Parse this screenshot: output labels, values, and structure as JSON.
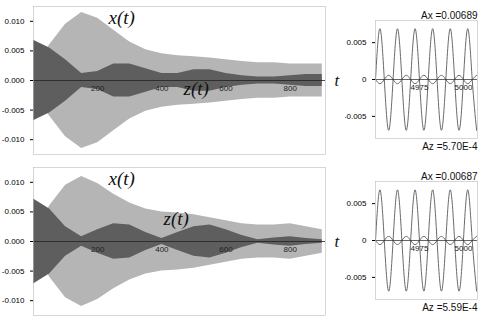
{
  "chart_data": [
    {
      "type": "area",
      "x_label": "t",
      "x": [
        0,
        50,
        100,
        150,
        200,
        250,
        300,
        350,
        400,
        450,
        500,
        550,
        600,
        650,
        700,
        750,
        800,
        850,
        900
      ],
      "xlim": [
        0,
        910
      ],
      "xticks": [
        200,
        400,
        600,
        800
      ],
      "ylim": [
        -0.0125,
        0.0125
      ],
      "yticks": [
        {
          "value": 0.01,
          "label": "0.010"
        },
        0.005,
        {
          "value": 0,
          "label": "0.000"
        },
        -0.005,
        {
          "value": -0.01,
          "label": "-0.010"
        }
      ],
      "series": [
        {
          "name": "x(t)",
          "color": "#b5b5b5",
          "upper": [
            0.002,
            0.006,
            0.0095,
            0.0115,
            0.0105,
            0.0085,
            0.0065,
            0.0052,
            0.0045,
            0.0042,
            0.004,
            0.0038,
            0.0035,
            0.0032,
            0.003,
            0.003,
            0.0028,
            0.0028,
            0.0028
          ],
          "lower": [
            -0.002,
            -0.006,
            -0.0095,
            -0.0115,
            -0.0105,
            -0.0085,
            -0.0065,
            -0.0052,
            -0.0045,
            -0.0042,
            -0.004,
            -0.0038,
            -0.0035,
            -0.0032,
            -0.003,
            -0.003,
            -0.0028,
            -0.0028,
            -0.0028
          ]
        },
        {
          "name": "z(t)",
          "color": "#5e5e5e",
          "upper": [
            0.0068,
            0.0055,
            0.0035,
            0.0012,
            0.0015,
            0.0028,
            0.0028,
            0.002,
            0.0012,
            0.0012,
            0.0018,
            0.0018,
            0.0012,
            0.0008,
            0.0006,
            0.0006,
            0.0008,
            0.001,
            0.001
          ],
          "lower": [
            -0.0068,
            -0.0055,
            -0.0035,
            -0.0012,
            -0.0015,
            -0.0028,
            -0.0028,
            -0.002,
            -0.0012,
            -0.0012,
            -0.0018,
            -0.0018,
            -0.0012,
            -0.0008,
            -0.0006,
            -0.0006,
            -0.0008,
            -0.001,
            -0.001
          ]
        }
      ]
    },
    {
      "type": "line",
      "x": [
        4950,
        4952.5,
        4955,
        4957.5,
        4960,
        4962.5,
        4965,
        4967.5,
        4970,
        4972.5,
        4975,
        4977.5,
        4980,
        4982.5,
        4985,
        4987.5,
        4990,
        4992.5,
        4995,
        4997.5,
        5000,
        5002.5,
        5005,
        5007.5
      ],
      "xlim": [
        4950,
        5008
      ],
      "xticks": [
        4975,
        5000
      ],
      "ylim": [
        -0.008,
        0.008
      ],
      "yticks": [
        0.005,
        0,
        -0.005
      ],
      "annotations": [
        "Ax =0.00689",
        "Az =5.70E-4"
      ],
      "series": [
        {
          "color": "#6a6a6a",
          "values": [
            0,
            0.00689,
            0,
            -0.00689,
            0,
            0.00689,
            0,
            -0.00689,
            0,
            0.00689,
            0,
            -0.00689,
            0,
            0.00689,
            0,
            -0.00689,
            0,
            0.00689,
            0,
            -0.00689,
            0,
            0.00689,
            0,
            -0.00689
          ]
        },
        {
          "color": "#6a6a6a",
          "values": [
            0,
            -0.00057,
            0,
            0.00057,
            0,
            -0.00057,
            0,
            0.00057,
            0,
            -0.00057,
            0,
            0.00057,
            0,
            -0.00057,
            0,
            0.00057,
            0,
            -0.00057,
            0,
            0.00057,
            0,
            -0.00057,
            0,
            0.00057
          ]
        }
      ]
    },
    {
      "type": "area",
      "x_label": "t",
      "x": [
        0,
        50,
        100,
        150,
        200,
        250,
        300,
        350,
        400,
        450,
        500,
        550,
        600,
        650,
        700,
        750,
        800,
        850,
        900
      ],
      "xlim": [
        0,
        910
      ],
      "xticks": [
        200,
        400,
        600,
        800
      ],
      "ylim": [
        -0.0125,
        0.0125
      ],
      "yticks": [
        {
          "value": 0.01,
          "label": "0.010"
        },
        0.005,
        {
          "value": 0,
          "label": "0.000"
        },
        -0.005,
        {
          "value": -0.01,
          "label": "-0.010"
        }
      ],
      "series": [
        {
          "name": "x(t)",
          "color": "#b5b5b5",
          "upper": [
            0.0005,
            0.006,
            0.0095,
            0.011,
            0.0098,
            0.008,
            0.0065,
            0.0055,
            0.005,
            0.0048,
            0.0045,
            0.004,
            0.0035,
            0.003,
            0.0028,
            0.0028,
            0.003,
            0.0025,
            0.002
          ],
          "lower": [
            -0.0005,
            -0.006,
            -0.0095,
            -0.011,
            -0.0098,
            -0.008,
            -0.0065,
            -0.0055,
            -0.005,
            -0.0048,
            -0.0045,
            -0.004,
            -0.0035,
            -0.003,
            -0.0028,
            -0.0028,
            -0.003,
            -0.0025,
            -0.002
          ]
        },
        {
          "name": "z(t)",
          "color": "#5e5e5e",
          "upper": [
            0.0072,
            0.0055,
            0.0025,
            0.0008,
            0.002,
            0.003,
            0.0028,
            0.0015,
            0.0005,
            0.0015,
            0.0025,
            0.0028,
            0.002,
            0.001,
            0.0003,
            0.0006,
            0.0008,
            0.0005,
            0.0003
          ],
          "lower": [
            -0.0072,
            -0.0055,
            -0.0025,
            -0.0008,
            -0.002,
            -0.003,
            -0.0028,
            -0.0015,
            -0.0005,
            -0.0015,
            -0.0025,
            -0.0028,
            -0.002,
            -0.001,
            -0.0003,
            -0.0006,
            -0.0008,
            -0.0005,
            -0.0003
          ]
        }
      ]
    },
    {
      "type": "line",
      "x": [
        4950,
        4952.5,
        4955,
        4957.5,
        4960,
        4962.5,
        4965,
        4967.5,
        4970,
        4972.5,
        4975,
        4977.5,
        4980,
        4982.5,
        4985,
        4987.5,
        4990,
        4992.5,
        4995,
        4997.5,
        5000,
        5002.5,
        5005,
        5007.5
      ],
      "xlim": [
        4950,
        5008
      ],
      "xticks": [
        4975,
        5000
      ],
      "ylim": [
        -0.008,
        0.008
      ],
      "yticks": [
        0.005,
        0,
        -0.005
      ],
      "annotations": [
        "Ax =0.00687",
        "Az =5.59E-4"
      ],
      "series": [
        {
          "color": "#6a6a6a",
          "values": [
            0,
            0.00687,
            0,
            -0.00687,
            0,
            0.00687,
            0,
            -0.00687,
            0,
            0.00687,
            0,
            -0.00687,
            0,
            0.00687,
            0,
            -0.00687,
            0,
            0.00687,
            0,
            -0.00687,
            0,
            0.00687,
            0,
            -0.00687
          ]
        },
        {
          "color": "#6a6a6a",
          "values": [
            0,
            -0.000559,
            0,
            0.000559,
            0,
            -0.000559,
            0,
            0.000559,
            0,
            -0.000559,
            0,
            0.000559,
            0,
            -0.000559,
            0,
            0.000559,
            0,
            -0.000559,
            0,
            0.000559,
            0,
            -0.000559,
            0,
            0.000559
          ]
        }
      ]
    }
  ]
}
